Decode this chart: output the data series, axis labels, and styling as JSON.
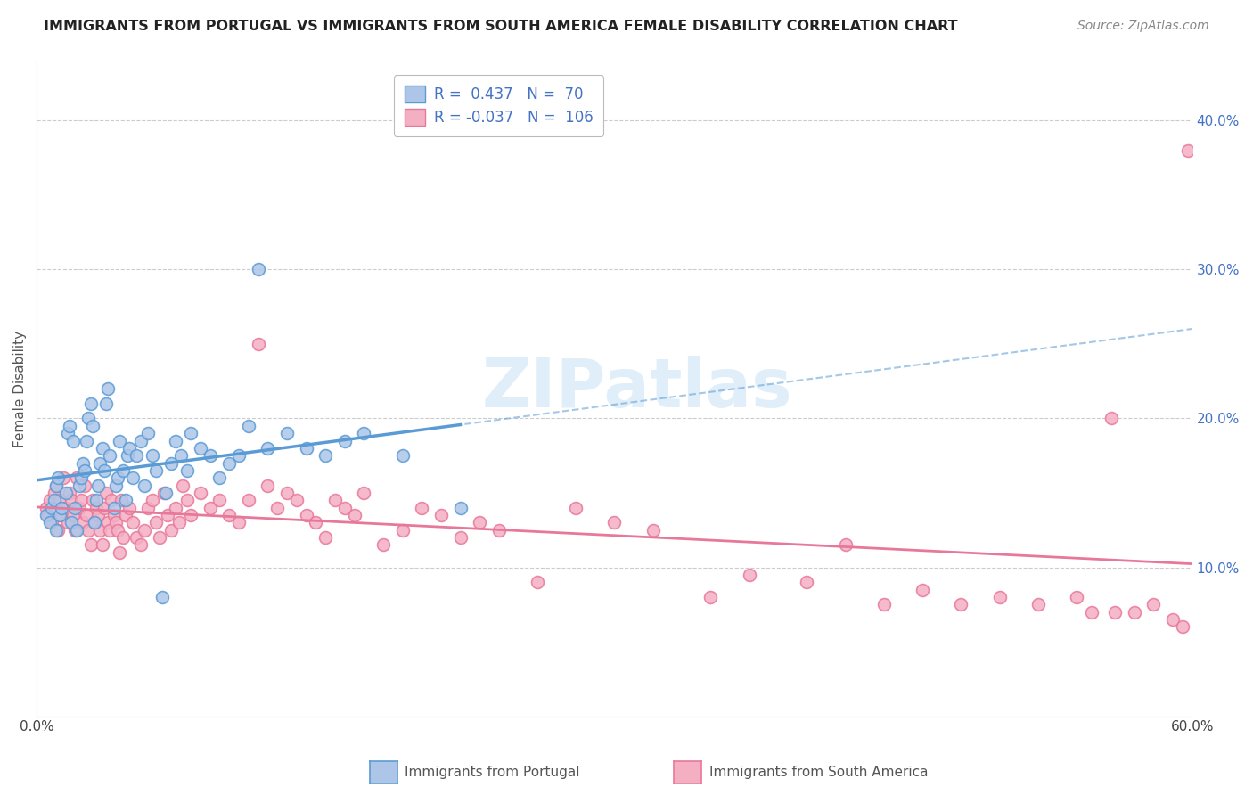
{
  "title": "IMMIGRANTS FROM PORTUGAL VS IMMIGRANTS FROM SOUTH AMERICA FEMALE DISABILITY CORRELATION CHART",
  "source": "Source: ZipAtlas.com",
  "ylabel": "Female Disability",
  "right_yticks": [
    "10.0%",
    "20.0%",
    "30.0%",
    "40.0%"
  ],
  "right_ytick_vals": [
    0.1,
    0.2,
    0.3,
    0.4
  ],
  "xlim": [
    0.0,
    0.6
  ],
  "ylim": [
    0.0,
    0.44
  ],
  "portugal_color": "#5b9bd5",
  "portugal_color_fill": "#adc6e8",
  "south_america_color": "#e8789a",
  "south_america_color_fill": "#f4afc3",
  "R_portugal": 0.437,
  "N_portugal": 70,
  "R_south_america": -0.037,
  "N_south_america": 106,
  "legend_label_portugal": "Immigrants from Portugal",
  "legend_label_south_america": "Immigrants from South America",
  "portugal_x": [
    0.005,
    0.007,
    0.008,
    0.009,
    0.01,
    0.01,
    0.011,
    0.012,
    0.013,
    0.015,
    0.016,
    0.017,
    0.018,
    0.019,
    0.02,
    0.021,
    0.022,
    0.023,
    0.024,
    0.025,
    0.026,
    0.027,
    0.028,
    0.029,
    0.03,
    0.031,
    0.032,
    0.033,
    0.034,
    0.035,
    0.036,
    0.037,
    0.038,
    0.04,
    0.041,
    0.042,
    0.043,
    0.045,
    0.046,
    0.047,
    0.048,
    0.05,
    0.052,
    0.054,
    0.056,
    0.058,
    0.06,
    0.062,
    0.065,
    0.067,
    0.07,
    0.072,
    0.075,
    0.078,
    0.08,
    0.085,
    0.09,
    0.095,
    0.1,
    0.105,
    0.11,
    0.115,
    0.12,
    0.13,
    0.14,
    0.15,
    0.16,
    0.17,
    0.19,
    0.22
  ],
  "portugal_y": [
    0.135,
    0.13,
    0.14,
    0.145,
    0.125,
    0.155,
    0.16,
    0.135,
    0.14,
    0.15,
    0.19,
    0.195,
    0.13,
    0.185,
    0.14,
    0.125,
    0.155,
    0.16,
    0.17,
    0.165,
    0.185,
    0.2,
    0.21,
    0.195,
    0.13,
    0.145,
    0.155,
    0.17,
    0.18,
    0.165,
    0.21,
    0.22,
    0.175,
    0.14,
    0.155,
    0.16,
    0.185,
    0.165,
    0.145,
    0.175,
    0.18,
    0.16,
    0.175,
    0.185,
    0.155,
    0.19,
    0.175,
    0.165,
    0.08,
    0.15,
    0.17,
    0.185,
    0.175,
    0.165,
    0.19,
    0.18,
    0.175,
    0.16,
    0.17,
    0.175,
    0.195,
    0.3,
    0.18,
    0.19,
    0.18,
    0.175,
    0.185,
    0.19,
    0.175,
    0.14
  ],
  "south_america_x": [
    0.005,
    0.006,
    0.007,
    0.008,
    0.009,
    0.01,
    0.011,
    0.012,
    0.013,
    0.014,
    0.015,
    0.016,
    0.017,
    0.018,
    0.019,
    0.02,
    0.021,
    0.022,
    0.023,
    0.024,
    0.025,
    0.026,
    0.027,
    0.028,
    0.029,
    0.03,
    0.031,
    0.032,
    0.033,
    0.034,
    0.035,
    0.036,
    0.037,
    0.038,
    0.039,
    0.04,
    0.041,
    0.042,
    0.043,
    0.044,
    0.045,
    0.046,
    0.048,
    0.05,
    0.052,
    0.054,
    0.056,
    0.058,
    0.06,
    0.062,
    0.064,
    0.066,
    0.068,
    0.07,
    0.072,
    0.074,
    0.076,
    0.078,
    0.08,
    0.085,
    0.09,
    0.095,
    0.1,
    0.105,
    0.11,
    0.115,
    0.12,
    0.125,
    0.13,
    0.135,
    0.14,
    0.145,
    0.15,
    0.155,
    0.16,
    0.165,
    0.17,
    0.18,
    0.19,
    0.2,
    0.21,
    0.22,
    0.23,
    0.24,
    0.26,
    0.28,
    0.3,
    0.32,
    0.35,
    0.37,
    0.4,
    0.42,
    0.44,
    0.46,
    0.48,
    0.5,
    0.52,
    0.54,
    0.56,
    0.57,
    0.58,
    0.59,
    0.595,
    0.598,
    0.558,
    0.548
  ],
  "south_america_y": [
    0.14,
    0.135,
    0.145,
    0.13,
    0.15,
    0.155,
    0.125,
    0.145,
    0.135,
    0.16,
    0.14,
    0.13,
    0.15,
    0.145,
    0.135,
    0.125,
    0.16,
    0.14,
    0.145,
    0.13,
    0.155,
    0.135,
    0.125,
    0.115,
    0.145,
    0.13,
    0.14,
    0.135,
    0.125,
    0.115,
    0.14,
    0.15,
    0.13,
    0.125,
    0.145,
    0.135,
    0.13,
    0.125,
    0.11,
    0.145,
    0.12,
    0.135,
    0.14,
    0.13,
    0.12,
    0.115,
    0.125,
    0.14,
    0.145,
    0.13,
    0.12,
    0.15,
    0.135,
    0.125,
    0.14,
    0.13,
    0.155,
    0.145,
    0.135,
    0.15,
    0.14,
    0.145,
    0.135,
    0.13,
    0.145,
    0.25,
    0.155,
    0.14,
    0.15,
    0.145,
    0.135,
    0.13,
    0.12,
    0.145,
    0.14,
    0.135,
    0.15,
    0.115,
    0.125,
    0.14,
    0.135,
    0.12,
    0.13,
    0.125,
    0.09,
    0.14,
    0.13,
    0.125,
    0.08,
    0.095,
    0.09,
    0.115,
    0.075,
    0.085,
    0.075,
    0.08,
    0.075,
    0.08,
    0.07,
    0.07,
    0.075,
    0.065,
    0.06,
    0.38,
    0.2,
    0.07
  ]
}
